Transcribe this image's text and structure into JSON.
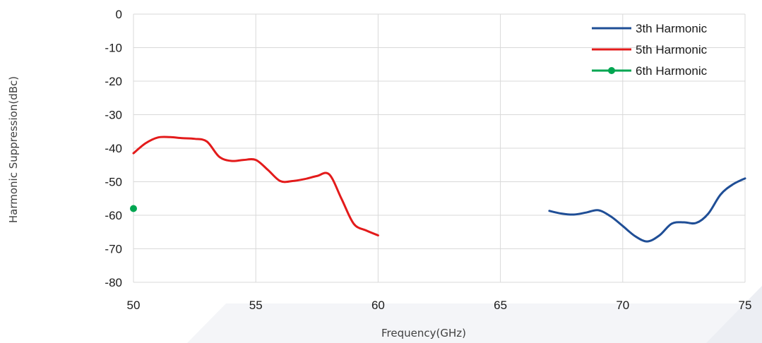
{
  "chart_data": {
    "type": "line",
    "title": "",
    "xlabel": "Frequency(GHz)",
    "ylabel": "Harmonic Suppression(dBc)",
    "xlim": [
      50,
      75
    ],
    "ylim": [
      -80,
      0
    ],
    "xticks": [
      "50",
      "55",
      "60",
      "65",
      "70",
      "75"
    ],
    "yticks": [
      "0",
      "-10",
      "-20",
      "-30",
      "-40",
      "-50",
      "-60",
      "-70",
      "-80"
    ],
    "grid": true,
    "legend_position": "top-right",
    "series": [
      {
        "name": "3th Harmonic",
        "color": "#1f4e96",
        "marker": "none",
        "x": [
          67,
          67.5,
          68,
          68.5,
          69,
          69.5,
          70,
          70.5,
          71,
          71.5,
          72,
          72.5,
          73,
          73.5,
          74,
          74.5,
          75
        ],
        "y": [
          -58.7,
          -59.5,
          -59.8,
          -59.2,
          -58.5,
          -60.3,
          -63.2,
          -66.2,
          -67.8,
          -66,
          -62.5,
          -62.1,
          -62.3,
          -59.5,
          -53.8,
          -50.8,
          -49
        ]
      },
      {
        "name": "5th Harmonic",
        "color": "#e31b1b",
        "marker": "none",
        "x": [
          50,
          50.5,
          51,
          51.5,
          52,
          52.5,
          53,
          53.5,
          54,
          54.5,
          55,
          55.5,
          56,
          56.5,
          57,
          57.5,
          58,
          58.5,
          59,
          59.5,
          60
        ],
        "y": [
          -41.5,
          -38.5,
          -36.8,
          -36.7,
          -37,
          -37.2,
          -38,
          -42.5,
          -43.8,
          -43.5,
          -43.5,
          -46.5,
          -49.8,
          -49.8,
          -49.2,
          -48.3,
          -47.8,
          -55,
          -62.5,
          -64.5,
          -66
        ]
      },
      {
        "name": "6th Harmonic",
        "color": "#00a651",
        "marker": "circle",
        "x": [
          50
        ],
        "y": [
          -58
        ]
      }
    ]
  }
}
